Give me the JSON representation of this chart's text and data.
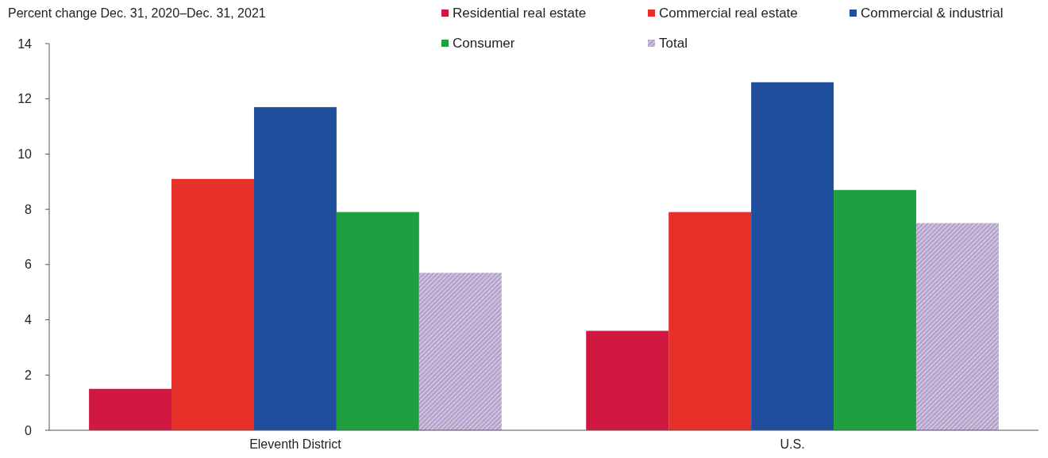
{
  "chart_data": {
    "type": "bar",
    "title": "Percent change Dec. 31, 2020–Dec. 31, 2021",
    "categories": [
      "Eleventh District",
      "U.S."
    ],
    "series": [
      {
        "name": "Residential real estate",
        "color": "#d01840",
        "values": [
          1.5,
          3.6
        ]
      },
      {
        "name": "Commercial real estate",
        "color": "#e8302a",
        "values": [
          9.1,
          7.9
        ]
      },
      {
        "name": "Commercial & industrial",
        "color": "#1f4e9c",
        "values": [
          11.7,
          12.6
        ]
      },
      {
        "name": "Consumer",
        "color": "#1ea040",
        "values": [
          7.9,
          8.7
        ]
      },
      {
        "name": "Total",
        "color": "#b4a4cc",
        "values": [
          5.7,
          7.5
        ]
      }
    ],
    "ylim": [
      0,
      14
    ],
    "yticks": [
      0,
      2,
      4,
      6,
      8,
      10,
      12,
      14
    ],
    "grid": false,
    "legend": "top right"
  }
}
